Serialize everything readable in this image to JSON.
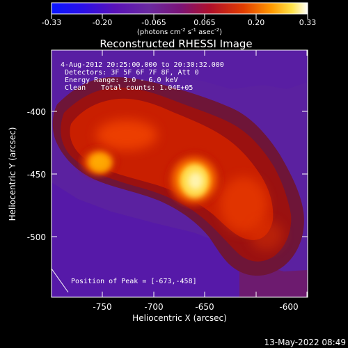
{
  "colorbar": {
    "ticks": [
      "-0.33",
      "-0.20",
      "-0.065",
      "0.065",
      "0.20",
      "0.33"
    ],
    "units_base": "(photons cm",
    "units_exp1": "-2",
    "units_mid1": " s",
    "units_exp2": "-1",
    "units_mid2": " asec",
    "units_exp3": "-2",
    "units_end": ")"
  },
  "title": "Reconstructed RHESSI Image",
  "info": {
    "time": "4-Aug-2012 20:25:00.000 to 20:30:32.000",
    "detectors": "Detectors: 3F 5F 6F 7F 8F, Att 0",
    "energy": "Energy Range: 3.0 - 6.0 keV",
    "clean_label": "Clean",
    "total_counts": "Total counts: 1.04E+05"
  },
  "peak_text": "Position of Peak = [-673,-458]",
  "axes": {
    "xlabel": "Heliocentric X (arcsec)",
    "ylabel": "Heliocentric Y (arcsec)",
    "x_ticks": [
      "-750",
      "-700",
      "-650",
      "-600"
    ],
    "y_ticks": [
      "-400",
      "-450",
      "-500"
    ]
  },
  "footer_timestamp": "13-May-2022 08:49",
  "colors": {
    "background": "#000000",
    "axis": "#ffffff"
  }
}
